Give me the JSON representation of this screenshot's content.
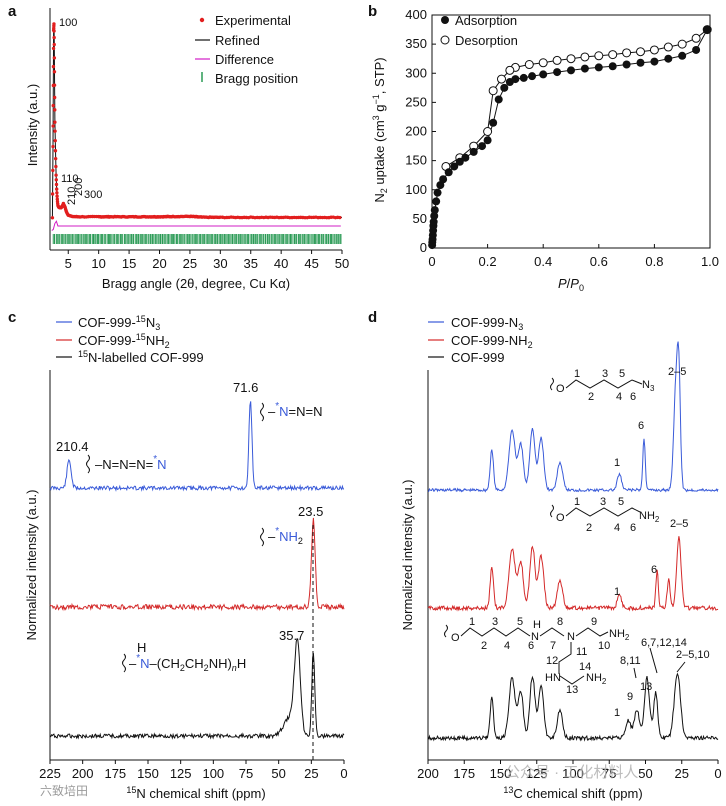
{
  "panels": [
    {
      "label": "a",
      "chart_data": {
        "type": "line",
        "xlabel": "Bragg angle (2θ, degree, Cu Kα)",
        "ylabel": "Intensity (a.u.)",
        "xlim": [
          2,
          50
        ],
        "xticks": [
          "5",
          "10",
          "15",
          "20",
          "25",
          "30",
          "35",
          "40",
          "45",
          "50"
        ],
        "legend_position": "top-right",
        "series": [
          {
            "name": "Experimental",
            "style": "dots",
            "color": "#e21e1e",
            "x": [
              2.4,
              2.5,
              2.55,
              2.6,
              2.65,
              2.7,
              2.75,
              2.8,
              2.9,
              3.0,
              3.1,
              3.2,
              3.3,
              3.5,
              3.8,
              4.0,
              4.2,
              4.5,
              4.7,
              5.0,
              5.5,
              6.0,
              6.5,
              7,
              8,
              9,
              10,
              12,
              15,
              18,
              20,
              22,
              25,
              27,
              30,
              35,
              40,
              45,
              50
            ],
            "y": [
              5,
              40,
              70,
              97,
              100,
              90,
              70,
              52,
              38,
              26,
              19,
              14,
              11,
              10,
              10,
              10.5,
              12,
              10,
              8,
              6.3,
              5.7,
              5.6,
              5.5,
              5.5,
              5.5,
              5.5,
              5.5,
              5.5,
              5.5,
              5.5,
              5.5,
              5.6,
              5.7,
              5.3,
              5.2,
              5.2,
              5.2,
              5.2,
              5.2
            ]
          },
          {
            "name": "Refined",
            "style": "line",
            "color": "#111111"
          },
          {
            "name": "Difference",
            "style": "line",
            "color": "#d21cc6"
          },
          {
            "name": "Bragg position",
            "style": "ticks",
            "color": "#2a9a55"
          }
        ],
        "annotations": [
          "100",
          "110",
          "210",
          "200",
          "300"
        ]
      }
    },
    {
      "label": "b",
      "chart_data": {
        "type": "line",
        "xlabel": "P/P0",
        "ylabel": "N2 uptake (cm3 g−1, STP)",
        "xlim": [
          0,
          1.0
        ],
        "ylim": [
          0,
          400
        ],
        "xticks": [
          "0",
          "0.2",
          "0.4",
          "0.6",
          "0.8",
          "1.0"
        ],
        "yticks": [
          "0",
          "50",
          "100",
          "150",
          "200",
          "250",
          "300",
          "350",
          "400"
        ],
        "legend_position": "top-left",
        "series": [
          {
            "name": "Adsorption",
            "marker": "filled-circle",
            "x": [
              0.0005,
              0.001,
              0.002,
              0.003,
              0.004,
              0.005,
              0.006,
              0.008,
              0.01,
              0.015,
              0.02,
              0.03,
              0.04,
              0.06,
              0.08,
              0.1,
              0.12,
              0.15,
              0.18,
              0.2,
              0.22,
              0.24,
              0.26,
              0.28,
              0.3,
              0.33,
              0.36,
              0.4,
              0.45,
              0.5,
              0.55,
              0.6,
              0.65,
              0.7,
              0.75,
              0.8,
              0.85,
              0.9,
              0.95,
              0.99
            ],
            "y": [
              5,
              10,
              15,
              22,
              30,
              38,
              45,
              55,
              65,
              80,
              95,
              108,
              118,
              130,
              140,
              148,
              155,
              165,
              175,
              185,
              215,
              255,
              275,
              285,
              290,
              292,
              295,
              298,
              302,
              305,
              308,
              310,
              312,
              315,
              318,
              320,
              325,
              330,
              340,
              375
            ]
          },
          {
            "name": "Desorption",
            "marker": "open-circle",
            "x": [
              0.99,
              0.95,
              0.9,
              0.85,
              0.8,
              0.75,
              0.7,
              0.65,
              0.6,
              0.55,
              0.5,
              0.45,
              0.4,
              0.35,
              0.3,
              0.28,
              0.25,
              0.22,
              0.2,
              0.15,
              0.1,
              0.05
            ],
            "y": [
              375,
              360,
              350,
              345,
              340,
              337,
              335,
              332,
              330,
              328,
              325,
              322,
              318,
              315,
              310,
              305,
              290,
              270,
              200,
              175,
              155,
              140
            ]
          }
        ]
      }
    },
    {
      "label": "c",
      "chart_data": {
        "type": "line",
        "xlabel": "15N chemical shift (ppm)",
        "ylabel": "Normalized intensity (a.u.)",
        "xlim": [
          225,
          0
        ],
        "xticks": [
          "225",
          "200",
          "175",
          "150",
          "125",
          "100",
          "75",
          "50",
          "25",
          "0"
        ],
        "legend_position": "top-left",
        "series": [
          {
            "name": "COF-999-15N3",
            "color": "#3a5bd9",
            "peaks_ppm": [
              210.4,
              71.6
            ]
          },
          {
            "name": "COF-999-15NH2",
            "color": "#d42a2a",
            "peaks_ppm": [
              23.5
            ]
          },
          {
            "name": "15N-labelled COF-999",
            "color": "#111111",
            "peaks_ppm": [
              35.7,
              23.5
            ]
          }
        ],
        "peak_labels": [
          "210.4",
          "71.6",
          "23.5",
          "35.7"
        ]
      }
    },
    {
      "label": "d",
      "chart_data": {
        "type": "line",
        "xlabel": "13C chemical shift (ppm)",
        "ylabel": "Normalized intensity (a.u.)",
        "xlim": [
          200,
          0
        ],
        "xticks": [
          "200",
          "175",
          "150",
          "125",
          "100",
          "75",
          "50",
          "25",
          "0"
        ],
        "legend_position": "top-left",
        "series": [
          {
            "name": "COF-999-N3",
            "color": "#3a5bd9"
          },
          {
            "name": "COF-999-NH2",
            "color": "#d42a2a"
          },
          {
            "name": "COF-999",
            "color": "#111111"
          }
        ],
        "peak_labels": [
          "1",
          "6",
          "2–5",
          "1",
          "6",
          "2–5",
          "1",
          "9",
          "13",
          "8,11",
          "6,7,12,14",
          "2–5,10"
        ]
      }
    }
  ],
  "text": {
    "a_label": "a",
    "b_label": "b",
    "c_label": "c",
    "d_label": "d",
    "a_ylabel": "Intensity (a.u.)",
    "a_xlabel": "Bragg angle (2θ, degree, Cu Kα)",
    "a_legend": [
      "Experimental",
      "Refined",
      "Difference",
      "Bragg position"
    ],
    "a_peaks": [
      "100",
      "110",
      "210",
      "200",
      "300"
    ],
    "a_xticks": [
      "5",
      "10",
      "15",
      "20",
      "25",
      "30",
      "35",
      "40",
      "45",
      "50"
    ],
    "b_ylabel_pre": "N",
    "b_ylabel_sub": "2",
    "b_ylabel_mid": " uptake (cm",
    "b_ylabel_sup1": "3",
    "b_ylabel_g": " g",
    "b_ylabel_sup2": "−1",
    "b_ylabel_end": ", STP)",
    "b_xlabel_p": "P",
    "b_xlabel_slash": "/",
    "b_xlabel_p0": "P",
    "b_xlabel_sub": "0",
    "b_legend": [
      "Adsorption",
      "Desorption"
    ],
    "b_xticks": [
      "0",
      "0.2",
      "0.4",
      "0.6",
      "0.8",
      "1.0"
    ],
    "b_yticks": [
      "0",
      "50",
      "100",
      "150",
      "200",
      "250",
      "300",
      "350",
      "400"
    ],
    "c_legend1_a": "COF-999-",
    "c_legend1_sup": "15",
    "c_legend1_b": "N",
    "c_legend1_sub": "3",
    "c_legend2_a": "COF-999-",
    "c_legend2_sup": "15",
    "c_legend2_b": "NH",
    "c_legend2_sub": "2",
    "c_legend3_sup": "15",
    "c_legend3_b": "N-labelled COF-999",
    "c_ylabel": "Normalized intensity (a.u.)",
    "c_xlabel_sup": "15",
    "c_xlabel": "N chemical shift (ppm)",
    "c_xticks": [
      "225",
      "200",
      "175",
      "150",
      "125",
      "100",
      "75",
      "50",
      "25",
      "0"
    ],
    "c_p1": "210.4",
    "c_p2": "71.6",
    "c_p3": "23.5",
    "c_p4": "35.7",
    "c_struct1": "N=N=N",
    "c_struct1_star": "*",
    "c_struct1_n": "N",
    "c_struct2": "N=N=N",
    "c_struct2_star": "*",
    "c_struct2_n": "N",
    "c_struct3_star": "*",
    "c_struct3_n": "NH",
    "c_struct3_sub": "2",
    "c_struct4_h": "H",
    "c_struct4_star": "*",
    "c_struct4_n": "N",
    "c_struct4_chain": "(CH",
    "c_struct4_s1": "2",
    "c_struct4_ch": "CH",
    "c_struct4_s2": "2",
    "c_struct4_nh": "NH)",
    "c_struct4_n2": "n",
    "c_struct4_h2": "H",
    "d_legend1_a": "COF-999-N",
    "d_legend1_sub": "3",
    "d_legend2_a": "COF-999-NH",
    "d_legend2_sub": "2",
    "d_legend3": "COF-999",
    "d_ylabel": "Normalized intensity (a.u.)",
    "d_xlabel_sup": "13",
    "d_xlabel": "C chemical shift (ppm)",
    "d_xticks": [
      "200",
      "175",
      "150",
      "125",
      "100",
      "75",
      "50",
      "25",
      "0"
    ],
    "d_n3": "N",
    "d_n3_sub": "3",
    "d_nh2": "NH",
    "d_nh2_sub": "2",
    "d_o": "O",
    "d_h": "H",
    "d_n": "N",
    "d_hn": "HN",
    "d_nh2b": "NH",
    "d_b1_1": "1",
    "d_b1_6": "6",
    "d_b1_25": "2–5",
    "d_b2_1": "1",
    "d_b2_6": "6",
    "d_b2_25": "2–5",
    "d_b3_1": "1",
    "d_b3_9": "9",
    "d_b3_13": "13",
    "d_b3_811": "8,11",
    "d_b3_671214": "6,7,12,14",
    "d_b3_2510": "2–5,10",
    "d_nums1": [
      "1",
      "2",
      "3",
      "4",
      "5",
      "6"
    ],
    "d_nums3": [
      "1",
      "2",
      "3",
      "4",
      "5",
      "6",
      "7",
      "8",
      "9",
      "10",
      "11",
      "12",
      "13",
      "14"
    ],
    "watermark1": "六致培田",
    "watermark2": "公众号 · 工化材料人"
  }
}
